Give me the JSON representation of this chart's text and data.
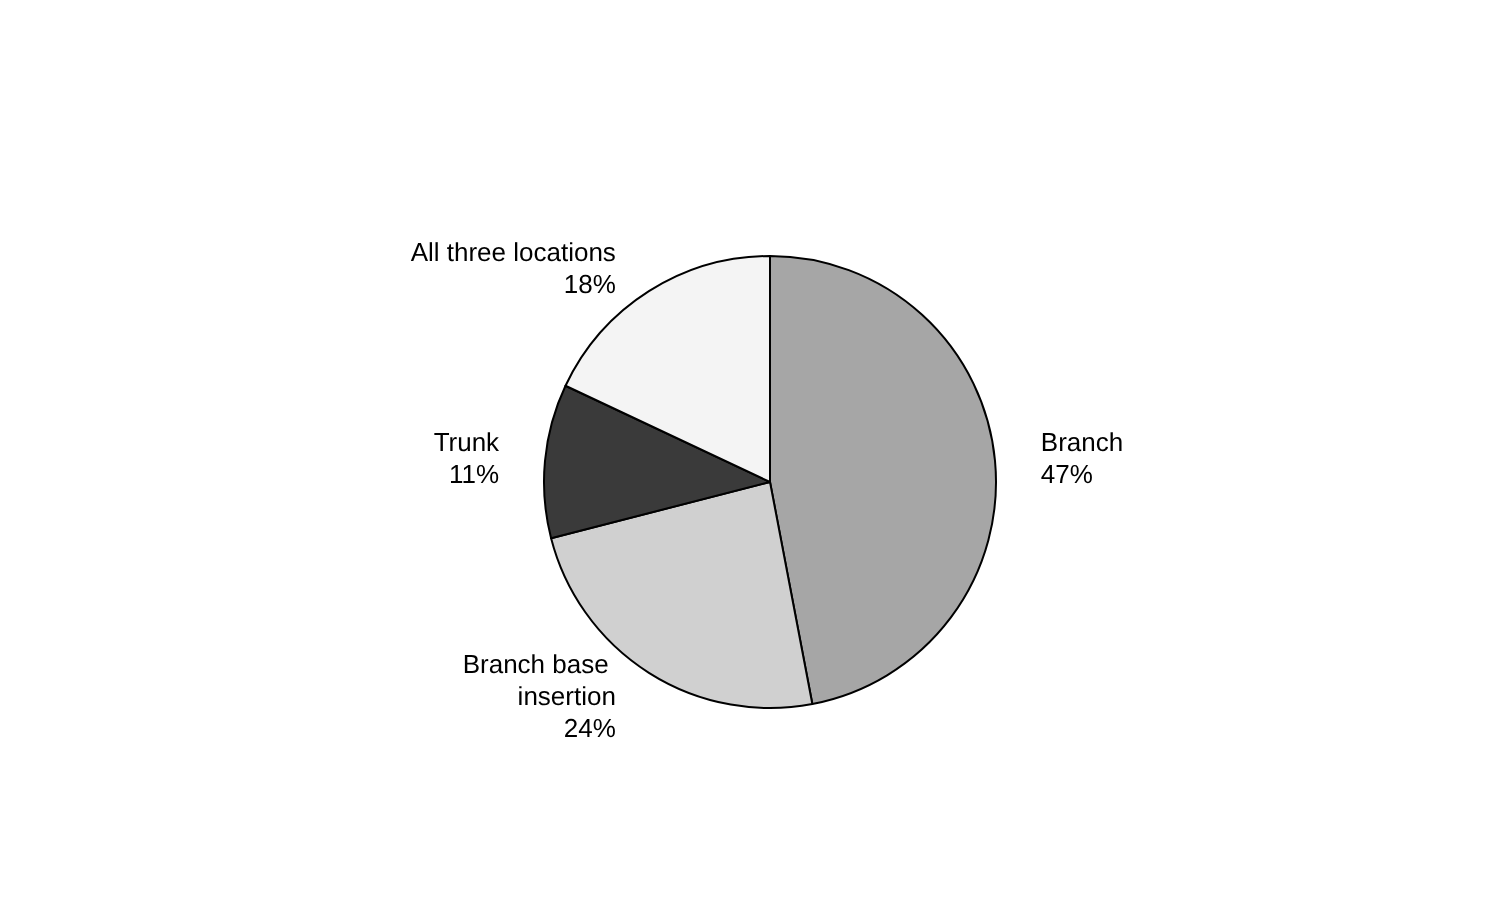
{
  "chart_data": {
    "type": "pie",
    "categories": [
      "Branch",
      "Branch base insertion",
      "Trunk",
      "All three locations"
    ],
    "values": [
      47,
      24,
      11,
      18
    ],
    "colors": [
      "#a6a6a6",
      "#d0d0d0",
      "#3a3a3a",
      "#f4f4f4"
    ],
    "value_labels": [
      "47%",
      "24%",
      "11%",
      "18%"
    ],
    "legend": false
  }
}
